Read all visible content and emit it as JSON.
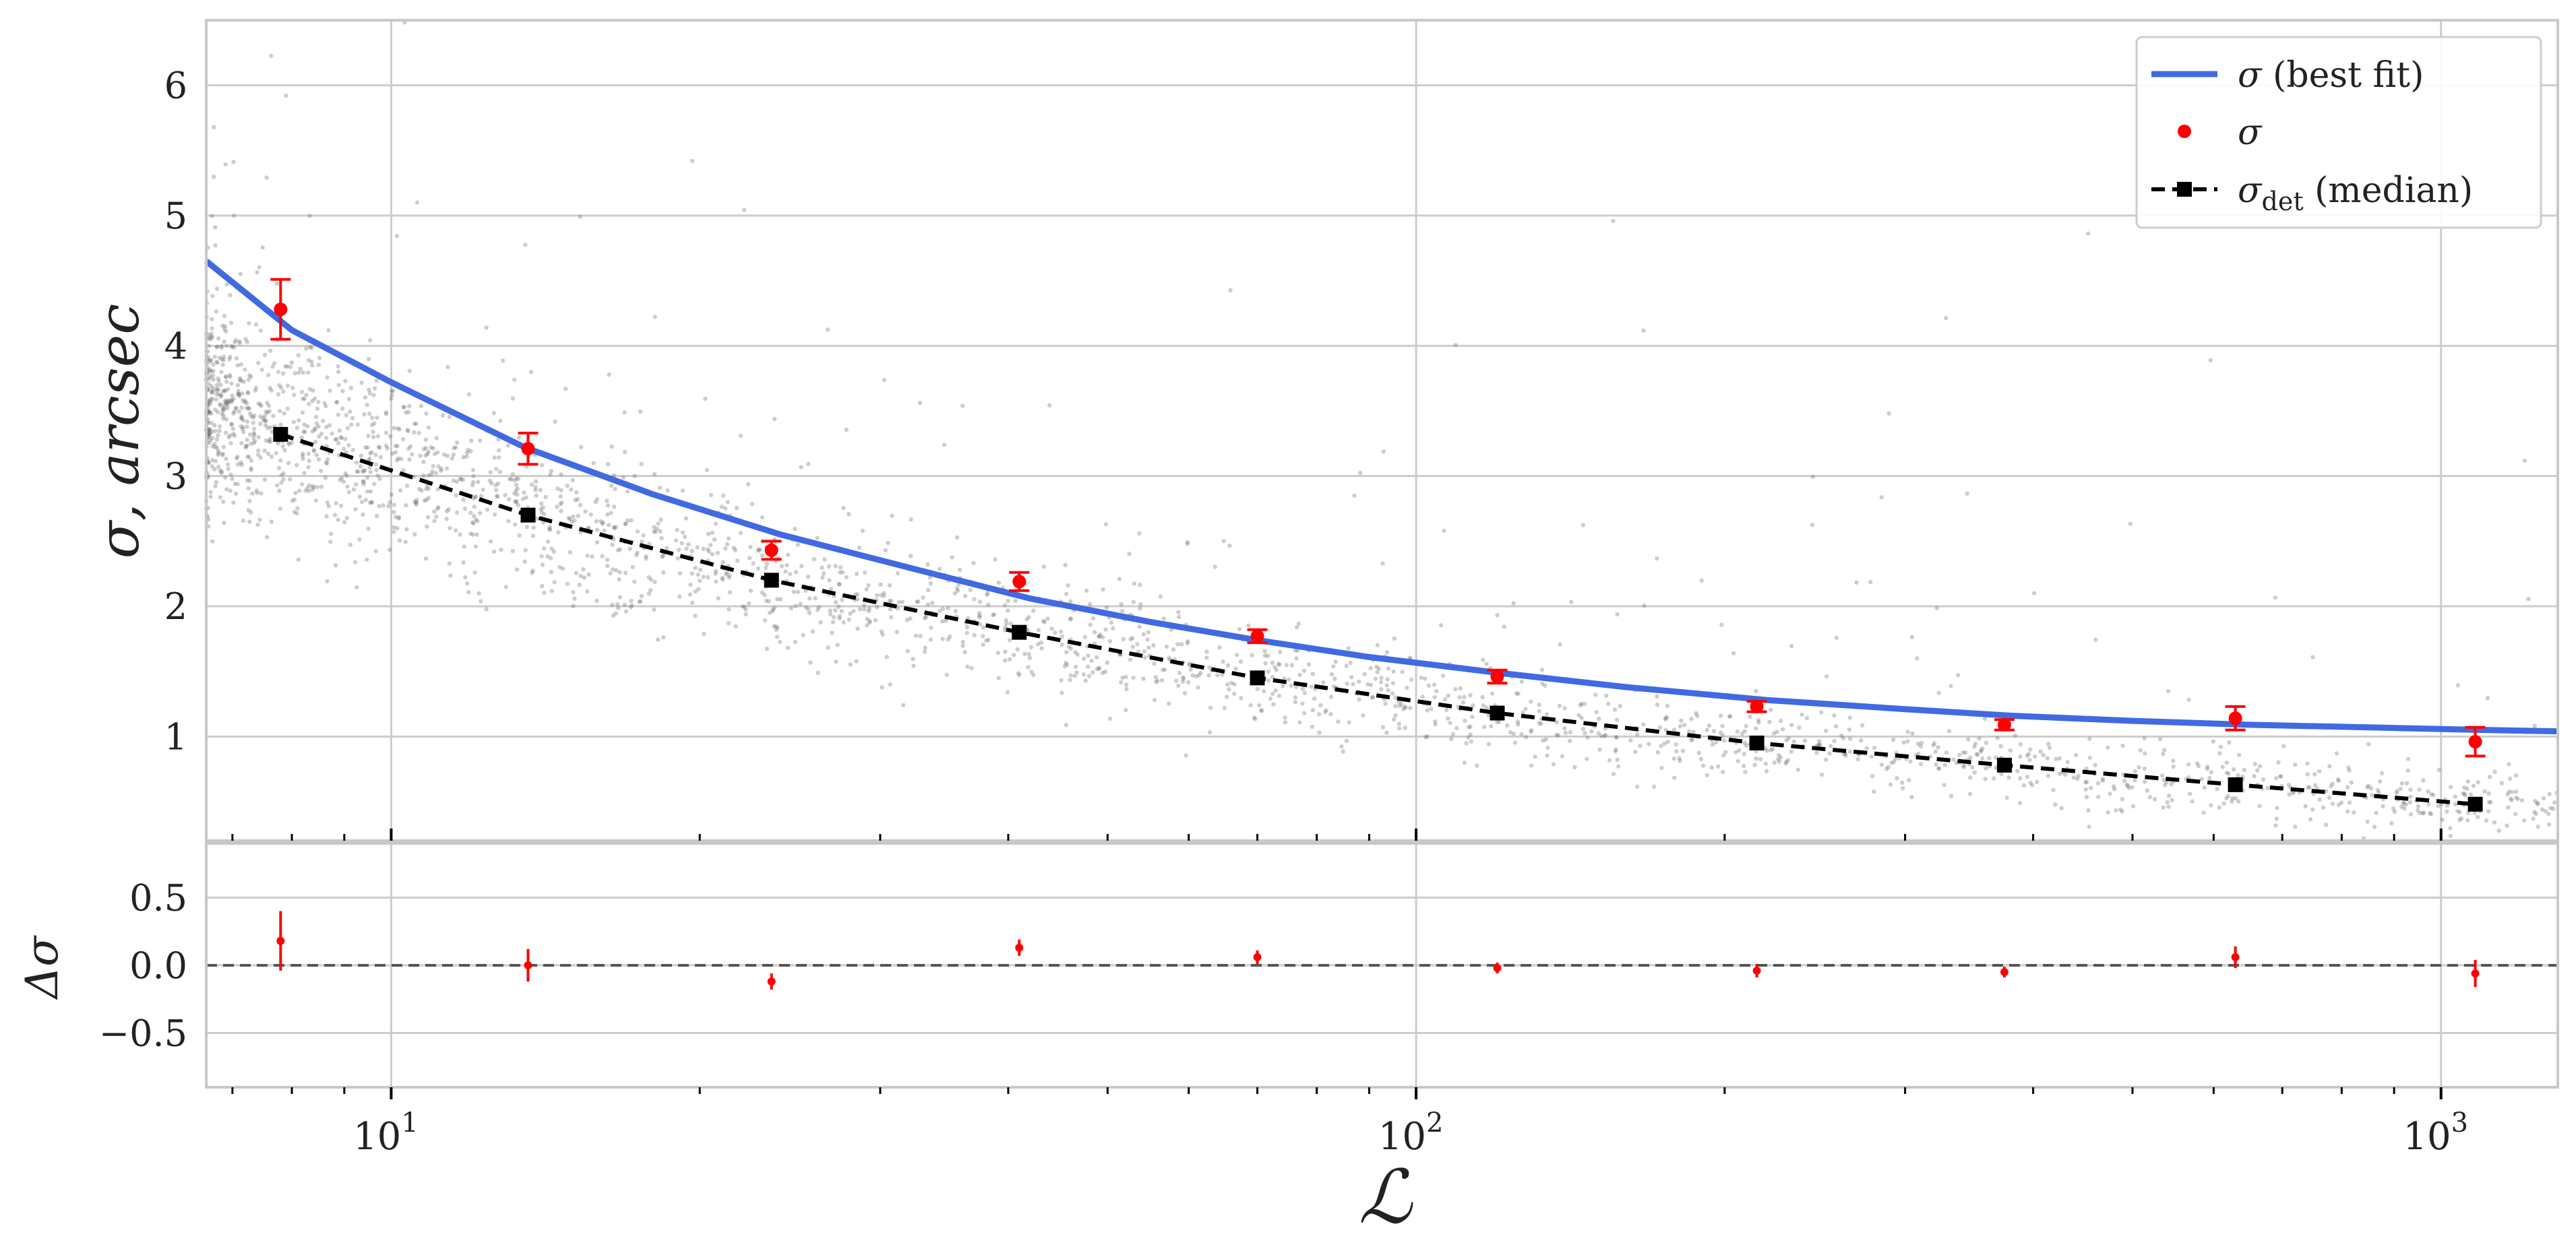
{
  "chart_data": [
    {
      "panel": "main",
      "type": "scatter",
      "ylabel": "σ, arcsec",
      "xscale": "log",
      "xlim": [
        6.6,
        1300
      ],
      "ylim": [
        0.2,
        6.5
      ],
      "grid": true,
      "legend_position": "top-right",
      "y_ticks": [
        1,
        2,
        3,
        4,
        5,
        6
      ],
      "y_tick_labels": [
        "1",
        "2",
        "3",
        "4",
        "5",
        "6"
      ],
      "series": [
        {
          "name": "σ (best fit)",
          "kind": "line",
          "color": "#4169E1",
          "x": [
            6.6,
            8,
            10,
            13.5,
            18,
            24,
            33,
            42,
            55,
            70,
            90,
            120,
            160,
            220,
            300,
            380,
            500,
            650,
            850,
            1100,
            1300
          ],
          "y": [
            4.65,
            4.12,
            3.72,
            3.22,
            2.86,
            2.55,
            2.27,
            2.06,
            1.88,
            1.74,
            1.61,
            1.49,
            1.38,
            1.28,
            1.21,
            1.16,
            1.12,
            1.09,
            1.07,
            1.05,
            1.04
          ]
        },
        {
          "name": "σ",
          "kind": "points_with_errorbars",
          "color": "#ff0000",
          "x": [
            7.8,
            13.6,
            23.5,
            41,
            70,
            120,
            215,
            375,
            630,
            1080
          ],
          "y": [
            4.28,
            3.21,
            2.43,
            2.19,
            1.77,
            1.46,
            1.23,
            1.09,
            1.14,
            0.96
          ],
          "err": [
            0.23,
            0.12,
            0.07,
            0.07,
            0.05,
            0.05,
            0.04,
            0.04,
            0.09,
            0.11
          ]
        },
        {
          "name": "σ_det (median)",
          "kind": "dashed_line_squares",
          "color": "#000000",
          "x": [
            7.8,
            13.6,
            23.5,
            41,
            70,
            120,
            215,
            375,
            630,
            1080
          ],
          "y": [
            3.32,
            2.7,
            2.2,
            1.8,
            1.45,
            1.18,
            0.95,
            0.78,
            0.63,
            0.48
          ]
        }
      ],
      "scatter_cloud": {
        "color": "#808080",
        "description_points_drawn_by_script": 2600,
        "x_range": [
          6.6,
          1300
        ],
        "trend": "samples scattered around σ_det"
      }
    },
    {
      "panel": "residual",
      "type": "scatter",
      "ylabel": "Δσ",
      "xlabel": "ℒ",
      "xscale": "log",
      "xlim": [
        6.6,
        1300
      ],
      "ylim": [
        -0.9,
        0.9
      ],
      "grid": true,
      "y_ticks": [
        -0.5,
        0.0,
        0.5
      ],
      "y_tick_labels": [
        "−0.5",
        "0.0",
        "0.5"
      ],
      "x_ticks": [
        10,
        100,
        1000
      ],
      "x_tick_bases": [
        "10",
        "10",
        "10"
      ],
      "x_tick_exponents": [
        "1",
        "2",
        "3"
      ],
      "zero_line": {
        "y": 0,
        "style": "dashed",
        "color": "#555555"
      },
      "series": [
        {
          "name": "Δσ",
          "color": "#ff0000",
          "x": [
            7.8,
            13.6,
            23.5,
            41,
            70,
            120,
            215,
            375,
            630,
            1080
          ],
          "y": [
            0.18,
            0.0,
            -0.12,
            0.13,
            0.06,
            -0.02,
            -0.04,
            -0.05,
            0.06,
            -0.06
          ],
          "err": [
            0.22,
            0.12,
            0.06,
            0.06,
            0.05,
            0.04,
            0.05,
            0.04,
            0.08,
            0.1
          ]
        }
      ]
    }
  ],
  "legend": {
    "items": [
      {
        "label_main": "σ",
        "label_rest": " (best fit)",
        "label_sub": ""
      },
      {
        "label_main": "σ",
        "label_rest": "",
        "label_sub": ""
      },
      {
        "label_main": "σ",
        "label_rest": " (median)",
        "label_sub": "det"
      }
    ]
  }
}
